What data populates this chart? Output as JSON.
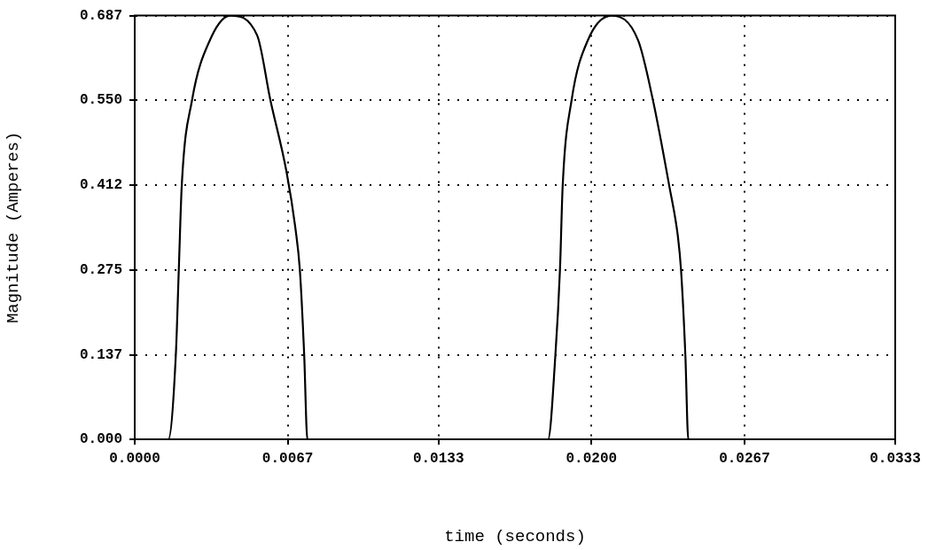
{
  "chart_data": {
    "type": "line",
    "xlabel": "time (seconds)",
    "ylabel": "Magnitude (Amperes)",
    "x": [
      0,
      0.00147,
      0.0018,
      0.00193,
      0.00206,
      0.00251,
      0.00329,
      0.00419,
      0.00536,
      0.00594,
      0.00665,
      0.00704,
      0.00723,
      0.00742,
      0.00756,
      0.0181,
      0.01842,
      0.01862,
      0.01874,
      0.01913,
      0.01984,
      0.02088,
      0.02204,
      0.02269,
      0.0234,
      0.02379,
      0.02392,
      0.02411,
      0.02424,
      0.0333
    ],
    "series": [
      {
        "color": "#000000",
        "values": [
          0,
          0,
          0.137,
          0.275,
          0.412,
          0.55,
          0.647,
          0.687,
          0.655,
          0.55,
          0.433,
          0.341,
          0.275,
          0.137,
          0,
          0,
          0.137,
          0.275,
          0.412,
          0.55,
          0.647,
          0.687,
          0.647,
          0.55,
          0.412,
          0.327,
          0.275,
          0.137,
          0,
          0
        ]
      }
    ],
    "xlim": [
      0,
      0.0333
    ],
    "xticks": [
      {
        "value": 0,
        "label": "0.0000"
      },
      {
        "value": 0.0067,
        "label": "0.0067"
      },
      {
        "value": 0.0133,
        "label": "0.0133"
      },
      {
        "value": 0.02,
        "label": "0.0200"
      },
      {
        "value": 0.0267,
        "label": "0.0267"
      },
      {
        "value": 0.0333,
        "label": "0.0333"
      }
    ],
    "ylim": [
      0,
      0.687
    ],
    "yticks": [
      {
        "value": 0,
        "label": "0.000"
      },
      {
        "value": 0.137,
        "label": "0.137"
      },
      {
        "value": 0.275,
        "label": "0.275"
      },
      {
        "value": 0.412,
        "label": "0.412"
      },
      {
        "value": 0.55,
        "label": "0.550"
      },
      {
        "value": 0.687,
        "label": "0.687"
      }
    ],
    "grid": true,
    "marker": "none",
    "line_style": "solid",
    "legend": false
  }
}
